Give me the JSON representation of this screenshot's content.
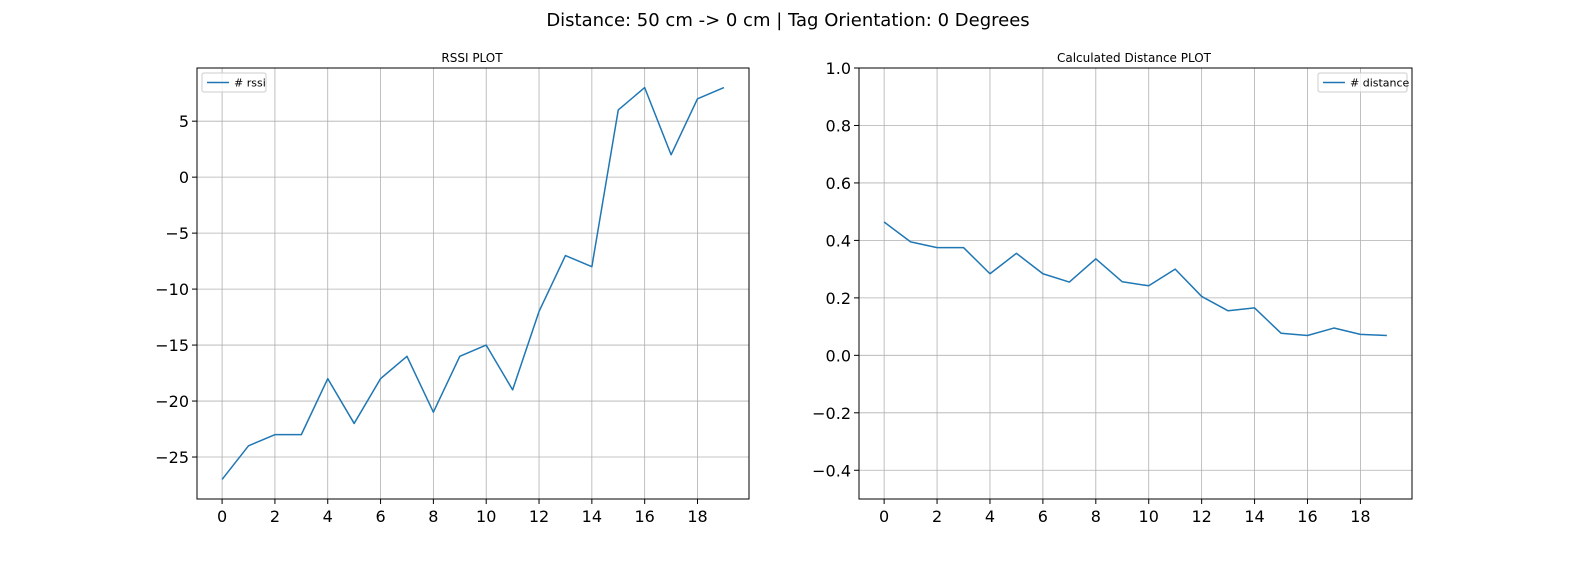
{
  "figure": {
    "title": "Distance: 50 cm -> 0 cm | Tag Orientation: 0 Degrees"
  },
  "chart_data": [
    {
      "type": "line",
      "title": "RSSI PLOT",
      "xlabel": "",
      "ylabel": "",
      "grid": true,
      "legend_position": "top-left",
      "xlim": [
        -0.95,
        19.95
      ],
      "ylim": [
        -28.75,
        9.75
      ],
      "xticks": [
        0,
        2,
        4,
        6,
        8,
        10,
        12,
        14,
        16,
        18
      ],
      "yticks": [
        -25,
        -20,
        -15,
        -10,
        -5,
        0,
        5
      ],
      "ytick_labels": [
        "−25",
        "−20",
        "−15",
        "−10",
        "−5",
        "0",
        "5"
      ],
      "color": "#1f77b4",
      "series": [
        {
          "name": "# rssi",
          "x": [
            0,
            1,
            2,
            3,
            4,
            5,
            6,
            7,
            8,
            9,
            10,
            11,
            12,
            13,
            14,
            15,
            16,
            17,
            18,
            19
          ],
          "values": [
            -27,
            -24,
            -23,
            -23,
            -18,
            -22,
            -18,
            -16,
            -21,
            -16,
            -15,
            -19,
            -12,
            -7,
            -8,
            6,
            8,
            2,
            7,
            8
          ]
        }
      ]
    },
    {
      "type": "line",
      "title": "Calculated Distance PLOT",
      "xlabel": "",
      "ylabel": "",
      "grid": true,
      "legend_position": "top-right",
      "xlim": [
        -0.95,
        19.95
      ],
      "ylim": [
        -0.5,
        1.0
      ],
      "xticks": [
        0,
        2,
        4,
        6,
        8,
        10,
        12,
        14,
        16,
        18
      ],
      "yticks": [
        -0.4,
        -0.2,
        0.0,
        0.2,
        0.4,
        0.6,
        0.8,
        1.0
      ],
      "ytick_labels": [
        "−0.4",
        "−0.2",
        "0.0",
        "0.2",
        "0.4",
        "0.6",
        "0.8",
        "1.0"
      ],
      "color": "#1f77b4",
      "series": [
        {
          "name": "# distance",
          "x": [
            0,
            1,
            2,
            3,
            4,
            5,
            6,
            7,
            8,
            9,
            10,
            11,
            12,
            13,
            14,
            15,
            16,
            17,
            18,
            19
          ],
          "values": [
            0.464,
            0.395,
            0.375,
            0.375,
            0.284,
            0.355,
            0.284,
            0.255,
            0.336,
            0.256,
            0.242,
            0.3,
            0.205,
            0.155,
            0.165,
            0.077,
            0.069,
            0.095,
            0.073,
            0.069
          ]
        }
      ]
    }
  ]
}
